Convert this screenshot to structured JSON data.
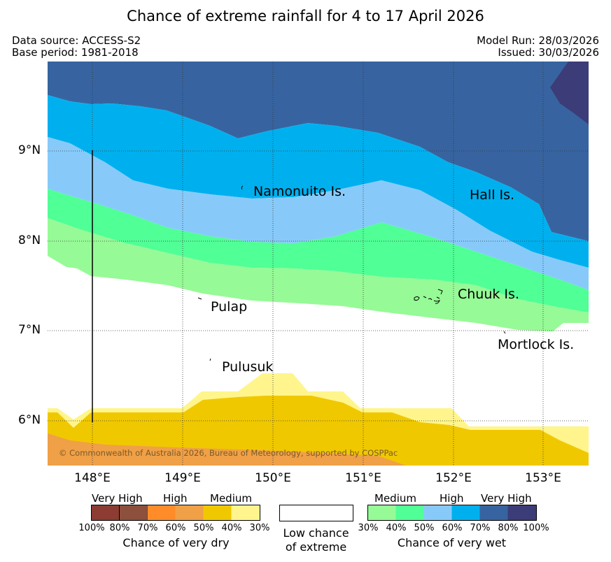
{
  "title": "Chance of extreme rainfall for 4 to 17 April 2026",
  "meta": {
    "data_source": "Data source: ACCESS-S2",
    "base_period": "Base period: 1981-2018",
    "model_run": "Model Run: 28/03/2026",
    "issued": "Issued: 30/03/2026"
  },
  "colors": {
    "wet_very_high_2": "#3c3c78",
    "wet_very_high_1": "#3764a0",
    "wet_high_2": "#00b0ee",
    "wet_high_1": "#87cafa",
    "wet_medium_2": "#50ff96",
    "wet_medium_1": "#96fa96",
    "neutral": "#ffffff",
    "dry_medium_1": "#fff58c",
    "dry_medium_2": "#f0c800",
    "dry_high_1": "#f0a046",
    "dry_high_2": "#ff8c28",
    "dry_very_high_1": "#8c503c",
    "dry_very_high_2": "#8c3c32"
  },
  "axes": {
    "lat_ticks": [
      "9°N",
      "8°N",
      "7°N",
      "6°N"
    ],
    "lon_ticks": [
      "148°E",
      "149°E",
      "150°E",
      "151°E",
      "152°E",
      "153°E"
    ]
  },
  "places": [
    {
      "name": "Namonuito Is."
    },
    {
      "name": "Hall Is."
    },
    {
      "name": "Chuuk Is."
    },
    {
      "name": "Pulap"
    },
    {
      "name": "Mortlock Is."
    },
    {
      "name": "Pulusuk"
    }
  ],
  "copyright": "© Commonwealth of Australia 2026, Bureau of Meteorology, supported by COSPPac",
  "legend": {
    "dry": {
      "groups": [
        "Very High",
        "High",
        "Medium"
      ],
      "ticks": [
        "100%",
        "80%",
        "70%",
        "60%",
        "50%",
        "40%",
        "30%"
      ],
      "title": "Chance of very dry"
    },
    "neutral": {
      "line1": "Low chance",
      "line2": "of extreme"
    },
    "wet": {
      "groups": [
        "Medium",
        "High",
        "Very High"
      ],
      "ticks": [
        "30%",
        "40%",
        "50%",
        "60%",
        "70%",
        "80%",
        "100%"
      ],
      "title": "Chance of very wet"
    }
  }
}
